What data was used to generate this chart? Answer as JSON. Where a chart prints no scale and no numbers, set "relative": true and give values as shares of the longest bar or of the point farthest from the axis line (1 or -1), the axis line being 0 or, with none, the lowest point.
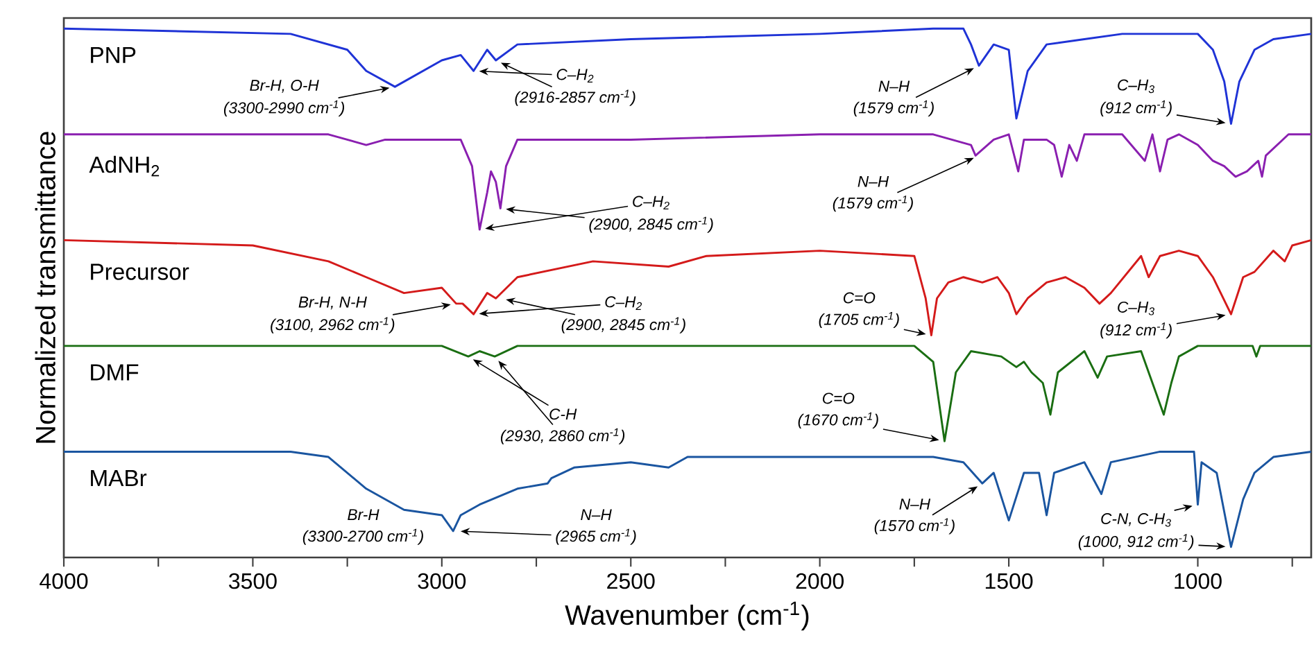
{
  "chart_data": {
    "type": "line",
    "relative": true,
    "xlabel": "Wavenumber (cm$^{-1}$)",
    "ylabel": "Normalized transmittance",
    "xlim": [
      4000,
      700
    ],
    "xticks": [
      4000,
      {
        "value": 3750,
        "label": null
      },
      3500,
      {
        "value": 3250,
        "label": null
      },
      3000,
      {
        "value": 2750,
        "label": null
      },
      2500,
      {
        "value": 2250,
        "label": null
      },
      2000,
      {
        "value": 1750,
        "label": null
      },
      1500,
      {
        "value": 1250,
        "label": null
      },
      1000,
      {
        "value": 750,
        "label": null
      }
    ],
    "series": [
      {
        "name": "PNP",
        "color": "#1f33d6",
        "x": [
          4000,
          3400,
          3250,
          3200,
          3124,
          3000,
          2950,
          2916,
          2880,
          2857,
          2800,
          2500,
          2000,
          1700,
          1620,
          1600,
          1579,
          1540,
          1500,
          1480,
          1450,
          1400,
          1300,
          1200,
          1100,
          1050,
          1000,
          960,
          930,
          912,
          890,
          850,
          800,
          700
        ],
        "values": [
          1.0,
          0.99,
          0.96,
          0.92,
          0.89,
          0.94,
          0.95,
          0.92,
          0.96,
          0.94,
          0.97,
          0.98,
          0.99,
          1.0,
          1.0,
          0.97,
          0.93,
          0.97,
          0.96,
          0.83,
          0.92,
          0.97,
          0.98,
          0.99,
          0.99,
          0.99,
          0.99,
          0.96,
          0.9,
          0.82,
          0.9,
          0.96,
          0.98,
          0.99
        ]
      },
      {
        "name": "AdNH$_{2}$",
        "color": "#8a1fb0",
        "x": [
          4000,
          3300,
          3200,
          3150,
          2950,
          2920,
          2900,
          2880,
          2870,
          2857,
          2845,
          2830,
          2800,
          2500,
          2000,
          1700,
          1600,
          1588,
          1540,
          1500,
          1475,
          1460,
          1400,
          1380,
          1360,
          1340,
          1320,
          1300,
          1200,
          1140,
          1120,
          1100,
          1080,
          1050,
          1000,
          960,
          930,
          900,
          870,
          840,
          830,
          820,
          760,
          700
        ],
        "values": [
          0.8,
          0.8,
          0.78,
          0.79,
          0.79,
          0.74,
          0.62,
          0.69,
          0.73,
          0.71,
          0.66,
          0.74,
          0.79,
          0.79,
          0.8,
          0.8,
          0.78,
          0.76,
          0.79,
          0.8,
          0.73,
          0.79,
          0.79,
          0.78,
          0.72,
          0.78,
          0.75,
          0.8,
          0.8,
          0.75,
          0.8,
          0.73,
          0.79,
          0.8,
          0.78,
          0.75,
          0.74,
          0.72,
          0.73,
          0.75,
          0.72,
          0.76,
          0.8,
          0.8
        ]
      },
      {
        "name": "Precursor",
        "color": "#d41a1a",
        "x": [
          4000,
          3500,
          3300,
          3200,
          3100,
          3000,
          2962,
          2945,
          2916,
          2880,
          2857,
          2800,
          2600,
          2400,
          2300,
          2000,
          1750,
          1720,
          1705,
          1690,
          1660,
          1620,
          1570,
          1530,
          1500,
          1480,
          1450,
          1400,
          1350,
          1300,
          1260,
          1230,
          1150,
          1130,
          1100,
          1050,
          1000,
          960,
          912,
          880,
          850,
          800,
          770,
          750,
          700
        ],
        "values": [
          0.6,
          0.59,
          0.56,
          0.53,
          0.5,
          0.51,
          0.48,
          0.48,
          0.46,
          0.5,
          0.49,
          0.53,
          0.56,
          0.55,
          0.57,
          0.58,
          0.57,
          0.49,
          0.42,
          0.49,
          0.52,
          0.53,
          0.52,
          0.53,
          0.5,
          0.46,
          0.49,
          0.52,
          0.53,
          0.51,
          0.48,
          0.5,
          0.57,
          0.53,
          0.57,
          0.58,
          0.57,
          0.53,
          0.46,
          0.53,
          0.54,
          0.58,
          0.56,
          0.59,
          0.6
        ]
      },
      {
        "name": "DMF",
        "color": "#1a6e12",
        "x": [
          4000,
          3000,
          2930,
          2900,
          2860,
          2800,
          2000,
          1750,
          1700,
          1670,
          1640,
          1600,
          1520,
          1480,
          1460,
          1440,
          1410,
          1390,
          1370,
          1300,
          1265,
          1240,
          1150,
          1090,
          1070,
          1050,
          1000,
          855,
          845,
          835,
          700
        ],
        "values": [
          0.4,
          0.4,
          0.38,
          0.39,
          0.38,
          0.4,
          0.4,
          0.4,
          0.37,
          0.22,
          0.35,
          0.39,
          0.38,
          0.36,
          0.37,
          0.35,
          0.33,
          0.27,
          0.35,
          0.39,
          0.34,
          0.38,
          0.39,
          0.27,
          0.33,
          0.38,
          0.4,
          0.4,
          0.38,
          0.4,
          0.4
        ]
      },
      {
        "name": "MABr",
        "color": "#1a55a0",
        "x": [
          4000,
          3400,
          3300,
          3200,
          3100,
          3000,
          2970,
          2950,
          2900,
          2800,
          2720,
          2710,
          2650,
          2500,
          2400,
          2350,
          2000,
          1700,
          1620,
          1570,
          1540,
          1500,
          1460,
          1420,
          1400,
          1380,
          1300,
          1255,
          1230,
          1100,
          1010,
          1000,
          990,
          950,
          912,
          880,
          850,
          800,
          700
        ],
        "values": [
          0.2,
          0.2,
          0.19,
          0.13,
          0.09,
          0.08,
          0.05,
          0.08,
          0.1,
          0.13,
          0.14,
          0.15,
          0.17,
          0.18,
          0.17,
          0.19,
          0.19,
          0.19,
          0.18,
          0.14,
          0.16,
          0.07,
          0.16,
          0.16,
          0.08,
          0.16,
          0.18,
          0.12,
          0.18,
          0.2,
          0.2,
          0.1,
          0.18,
          0.16,
          0.02,
          0.11,
          0.16,
          0.19,
          0.2
        ]
      }
    ],
    "annotations": [
      "Br-H, O-H",
      {
        "text": "(3300-2990 cm$^{-1}$)",
        "x": 3124,
        "y": 0.89
      },
      {
        "text": "C–H$_{2}$",
        "x": 2916,
        "y": 0.92
      },
      {
        "text": "(2916-2857 cm$^{-1}$)",
        "x": 2857,
        "y": 0.94
      },
      "N–H",
      {
        "text": "(1579 cm$^{-1}$)",
        "x": 1579,
        "y": 0.93
      },
      "C–H$_{3}$",
      {
        "text": "(912 cm$^{-1}$)",
        "x": 912,
        "y": 0.82
      },
      {
        "text": "C–H$_{2}$",
        "x": 2900,
        "y": 0.62
      },
      {
        "text": "(2900, 2845 cm$^{-1}$)",
        "x": 2845,
        "y": 0.66
      },
      "N–H",
      {
        "text": "(1579 cm$^{-1}$)",
        "x": 1579,
        "y": 0.76
      },
      "Br-H, N-H",
      {
        "text": "(3100, 2962 cm$^{-1}$)",
        "x": 2962,
        "y": 0.48
      },
      {
        "text": "C–H$_{2}$",
        "x": 2916,
        "y": 0.46
      },
      {
        "text": "(2900, 2845 cm$^{-1}$)",
        "x": 2845,
        "y": 0.49
      },
      "C=O",
      {
        "text": "(1705 cm$^{-1}$)",
        "x": 1705,
        "y": 0.42
      },
      "C–H$_{3}$",
      {
        "text": "(912 cm$^{-1}$)",
        "x": 912,
        "y": 0.46
      },
      {
        "text": "C-H",
        "x": 2930,
        "y": 0.38
      },
      {
        "text": "(2930, 2860 cm$^{-1}$)",
        "x": 2860,
        "y": 0.38
      },
      "C=O",
      {
        "text": "(1670 cm$^{-1}$)",
        "x": 1670,
        "y": 0.22
      },
      "Br-H",
      "(3300-2700 cm$^{-1}$)",
      "N–H",
      {
        "text": "(2965 cm$^{-1}$)",
        "x": 2965,
        "y": 0.05
      },
      "N–H",
      {
        "text": "(1570 cm$^{-1}$)",
        "x": 1570,
        "y": 0.14
      },
      {
        "text": "C-N, C-H$_{3}$",
        "x": 1000,
        "y": 0.1
      },
      {
        "text": "(1000, 912 cm$^{-1}$)",
        "x": 912,
        "y": 0.02
      }
    ]
  }
}
